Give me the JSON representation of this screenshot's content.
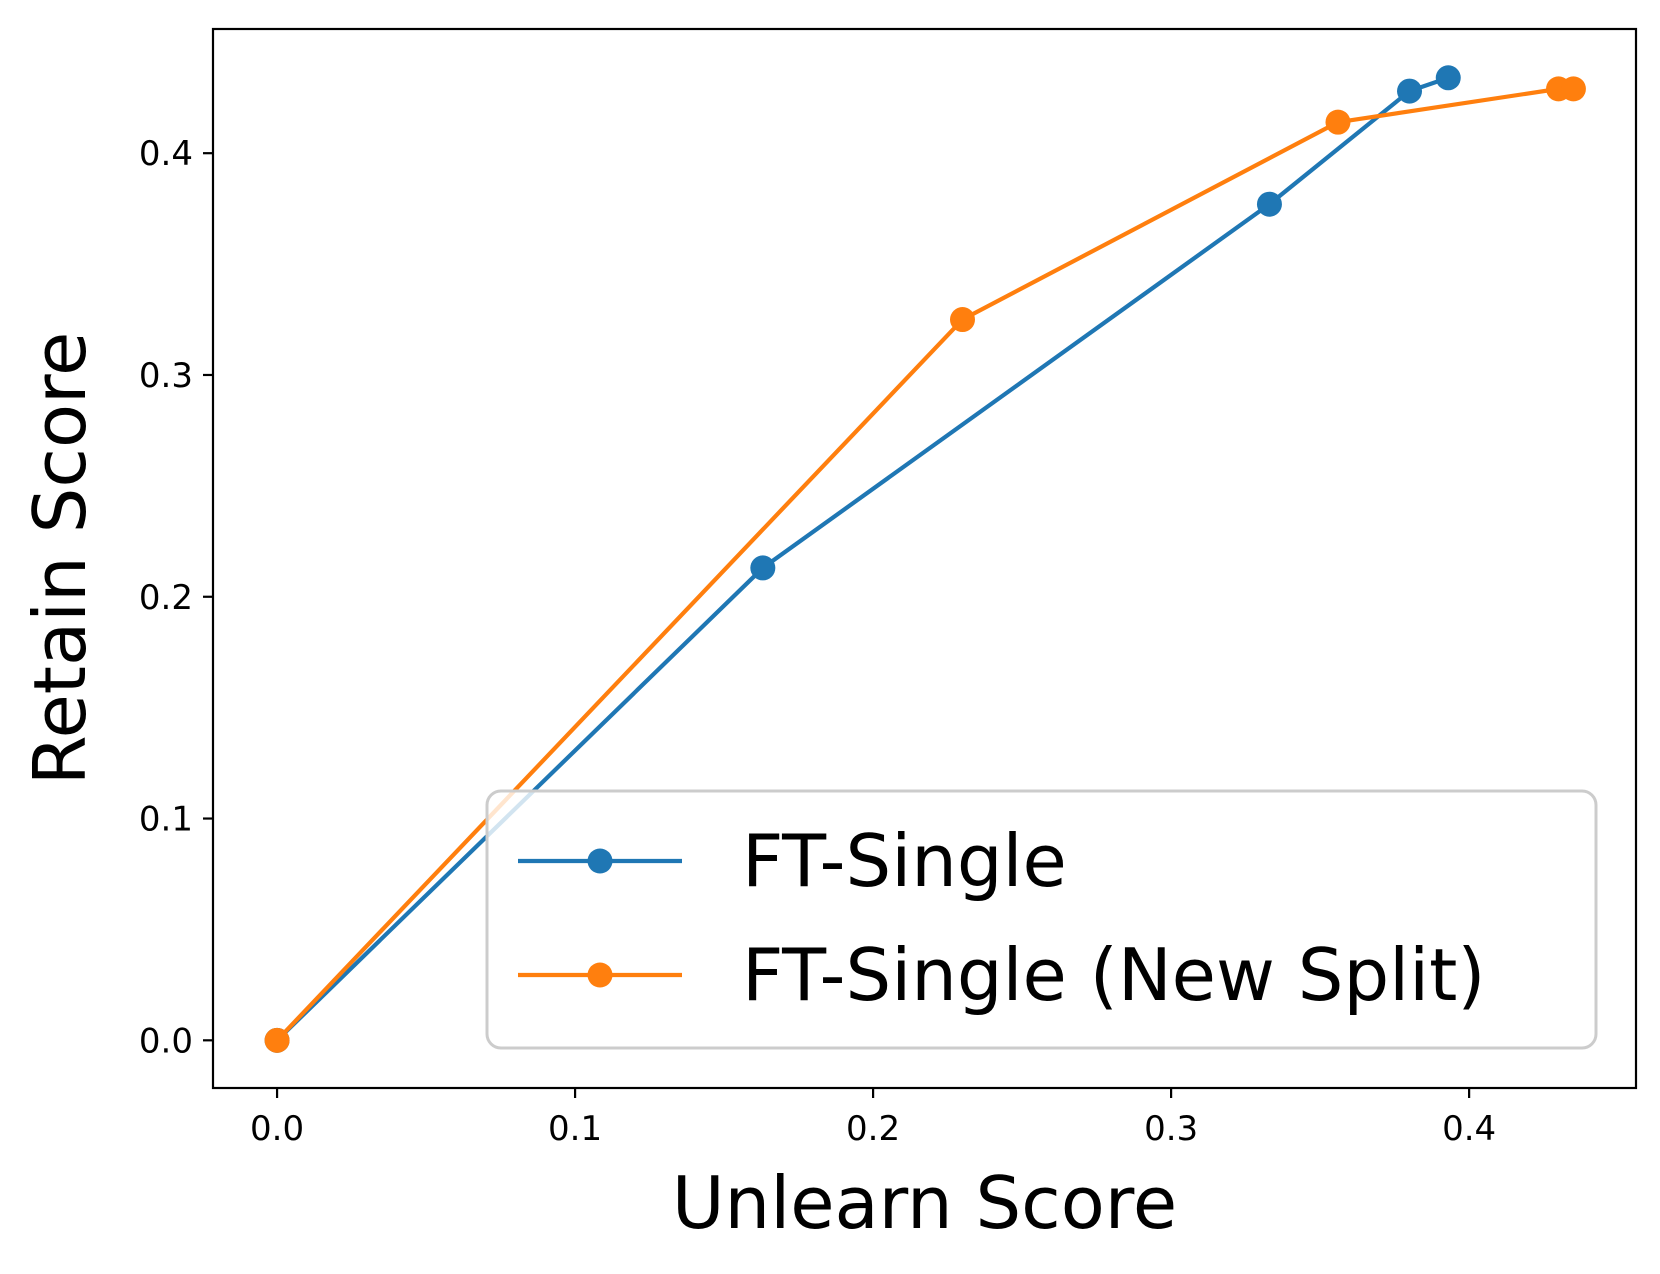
{
  "chart_data": {
    "type": "line",
    "title": "",
    "xlabel": "Unlearn Score",
    "ylabel": "Retain Score",
    "xlim": [
      -0.0215,
      0.456
    ],
    "ylim": [
      -0.0215,
      0.456
    ],
    "x_ticks": [
      0.0,
      0.1,
      0.2,
      0.3,
      0.4
    ],
    "x_tick_labels": [
      "0.0",
      "0.1",
      "0.2",
      "0.3",
      "0.4"
    ],
    "y_ticks": [
      0.0,
      0.1,
      0.2,
      0.3,
      0.4
    ],
    "y_tick_labels": [
      "0.0",
      "0.1",
      "0.2",
      "0.3",
      "0.4"
    ],
    "grid": false,
    "legend_position": "lower-right",
    "series": [
      {
        "name": "FT-Single",
        "color": "#1f77b4",
        "marker": "circle",
        "points": [
          {
            "x": 0.0,
            "y": 0.0
          },
          {
            "x": 0.163,
            "y": 0.213
          },
          {
            "x": 0.333,
            "y": 0.377
          },
          {
            "x": 0.38,
            "y": 0.428
          },
          {
            "x": 0.393,
            "y": 0.434
          }
        ]
      },
      {
        "name": "FT-Single (New Split)",
        "color": "#ff7f0e",
        "marker": "circle",
        "points": [
          {
            "x": 0.0,
            "y": 0.0
          },
          {
            "x": 0.23,
            "y": 0.325
          },
          {
            "x": 0.356,
            "y": 0.414
          },
          {
            "x": 0.43,
            "y": 0.429
          },
          {
            "x": 0.435,
            "y": 0.429
          }
        ]
      }
    ]
  }
}
